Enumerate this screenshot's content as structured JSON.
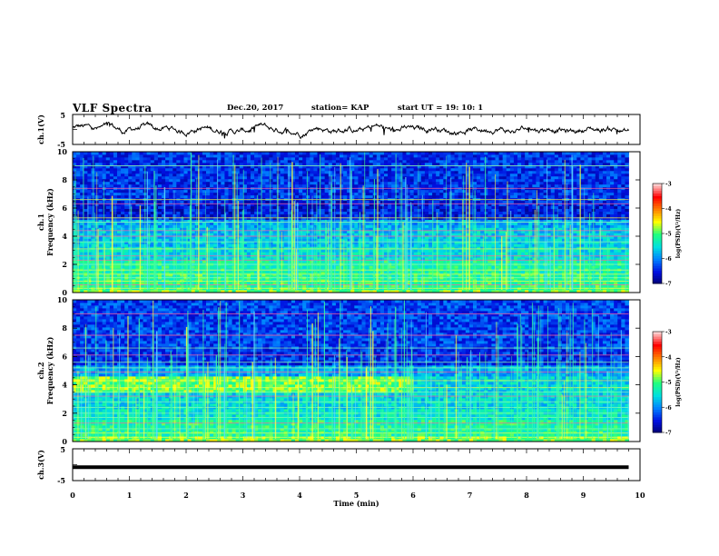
{
  "header": {
    "title": "VLF Spectra",
    "date": "Dec.20, 2017",
    "station": "station= KAP",
    "start_ut": "start  UT =  19: 10: 1"
  },
  "chart_data": [
    {
      "type": "line",
      "name": "ch1-waveform",
      "ylabel": "ch.1(V)",
      "ylim": [
        -5,
        5
      ],
      "yticks": [
        "5",
        "-5"
      ],
      "xlim": [
        0,
        10
      ],
      "description_values": "noisy waveform roughly between -1 and +2 V"
    },
    {
      "type": "heatmap",
      "name": "ch1-spectrogram",
      "ylabel": "ch.1\nFrequency (kHz)",
      "ylim": [
        0,
        10
      ],
      "yticks": [
        "0",
        "2",
        "4",
        "6",
        "8",
        "10"
      ],
      "xlim": [
        0,
        9.8
      ],
      "colorbar": {
        "label": "log(PSD)(V²/Hz)",
        "range": [
          -7,
          -3
        ],
        "ticks": [
          "-3",
          "-4",
          "-5",
          "-6",
          "-7"
        ]
      }
    },
    {
      "type": "heatmap",
      "name": "ch2-spectrogram",
      "ylabel": "ch.2\nFrequency (kHz)",
      "ylim": [
        0,
        10
      ],
      "yticks": [
        "0",
        "2",
        "4",
        "6",
        "8",
        "10"
      ],
      "xlim": [
        0,
        9.8
      ],
      "colorbar": {
        "label": "log(PSD)(V²/Hz)",
        "range": [
          -7,
          -3
        ],
        "ticks": [
          "-3",
          "-4",
          "-5",
          "-6",
          "-7"
        ]
      }
    },
    {
      "type": "line",
      "name": "ch3-waveform",
      "ylabel": "ch.3(V)",
      "ylim": [
        -5,
        5
      ],
      "yticks": [
        "5",
        "-5"
      ],
      "x": [
        0,
        9.8
      ],
      "y": [
        -0.8,
        -0.8
      ]
    }
  ],
  "xaxis": {
    "label": "Time  (min)",
    "ticks": [
      "0",
      "1",
      "2",
      "3",
      "4",
      "5",
      "6",
      "7",
      "8",
      "9",
      "10"
    ]
  },
  "colors": {
    "ink": "#000000",
    "cmap": [
      "#000070",
      "#0010e0",
      "#0080ff",
      "#00e0e0",
      "#20ff80",
      "#ffff00",
      "#ff8000",
      "#ff0000",
      "#ffd0d0"
    ]
  }
}
